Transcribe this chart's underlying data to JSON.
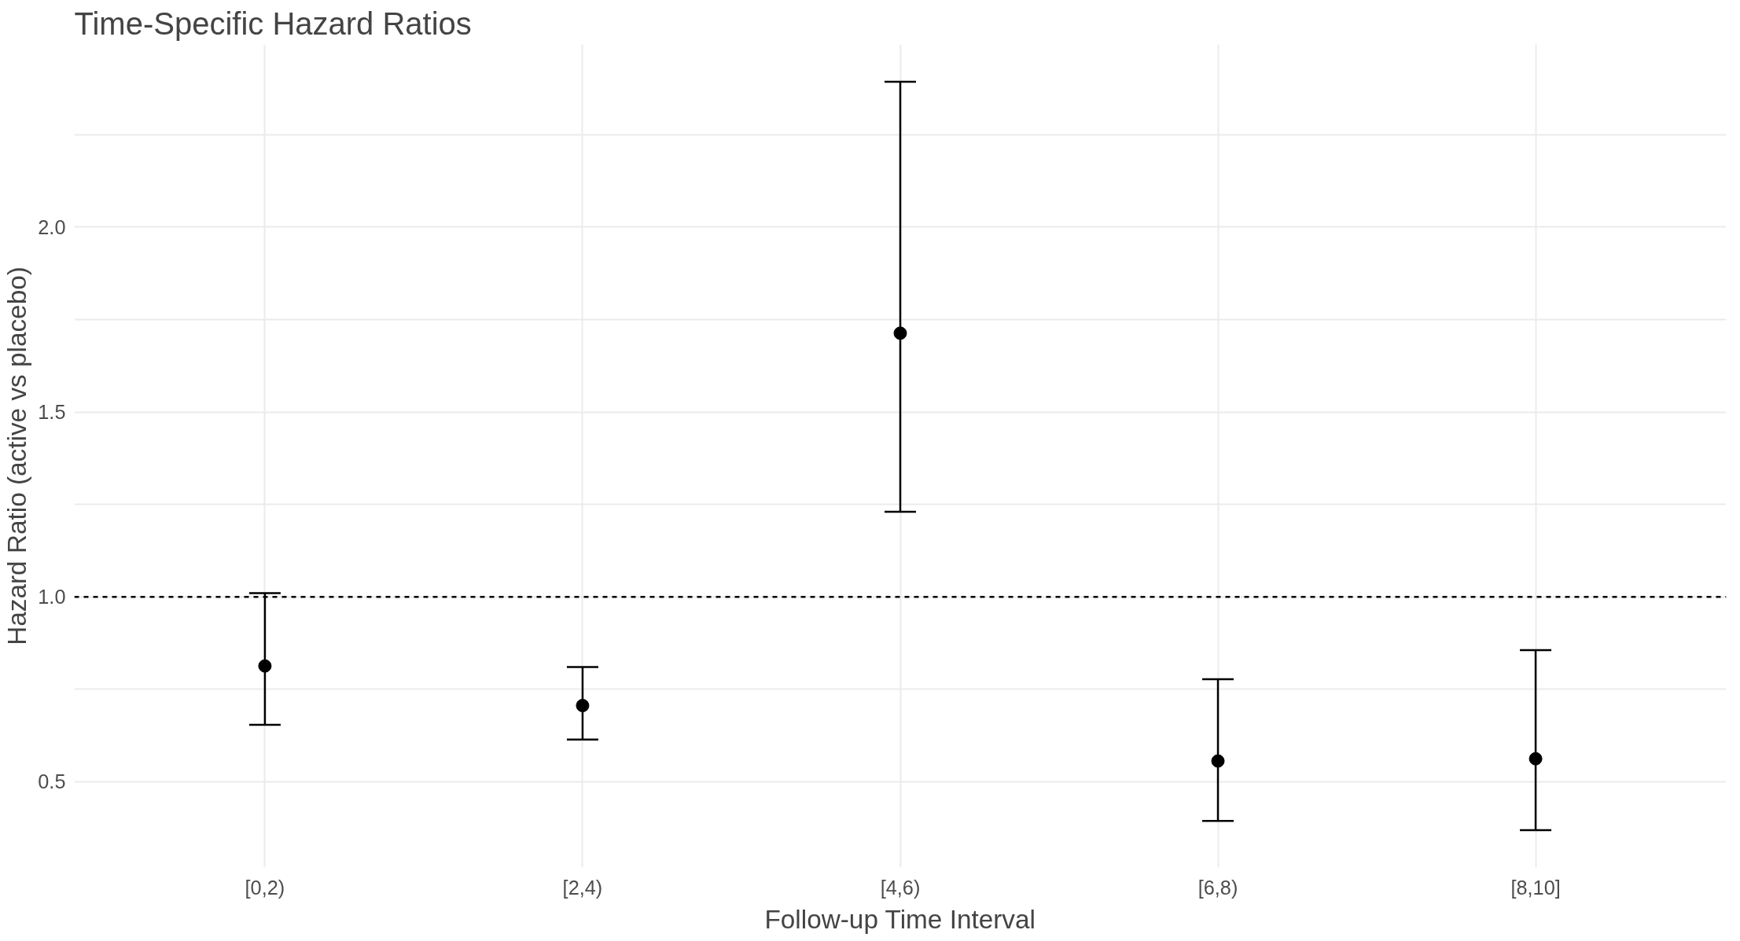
{
  "chart_data": {
    "type": "scatter",
    "title": "Time-Specific Hazard Ratios",
    "xlabel": "Follow-up Time Interval",
    "ylabel": "Hazard Ratio (active vs placebo)",
    "categories": [
      "[0,2)",
      "[2,4)",
      "[4,6)",
      "[6,8)",
      "[8,10]"
    ],
    "values": [
      0.813,
      0.706,
      1.713,
      0.556,
      0.562
    ],
    "errors": [
      [
        0.654,
        1.01
      ],
      [
        0.614,
        0.81
      ],
      [
        1.23,
        2.393
      ],
      [
        0.394,
        0.777
      ],
      [
        0.369,
        0.856
      ]
    ],
    "colors": [
      "#000000",
      "#000000",
      "#000000",
      "#000000",
      "#000000"
    ],
    "ylim": [
      0.268,
      2.494
    ],
    "yticks": [
      0.5,
      {
        "value": 0.75,
        "label": null
      },
      {
        "value": 1.0,
        "label": "1.0"
      },
      {
        "value": 1.25,
        "label": null
      },
      1.5,
      {
        "value": 1.75,
        "label": null
      },
      {
        "value": 2.0,
        "label": "2.0"
      },
      {
        "value": 2.25,
        "label": null
      }
    ],
    "ref_lines": [
      {
        "axis": "y",
        "value": 1.0,
        "color": "#000000",
        "line_style": "dashed"
      }
    ],
    "grid": true,
    "marker": "circle"
  }
}
